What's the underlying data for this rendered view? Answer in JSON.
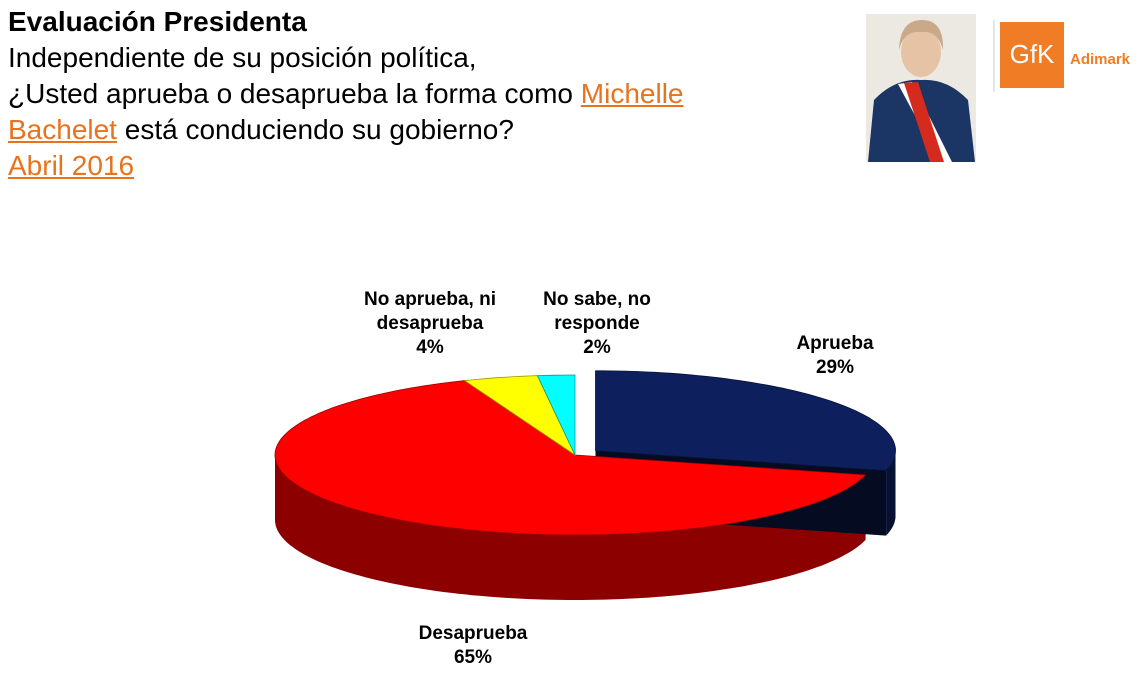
{
  "chart_data": {
    "type": "pie",
    "title": "Evaluación Presidenta",
    "subtitle": "Independiente de su posición política,",
    "question_start": "¿Usted aprueba o desaprueba la forma como",
    "name_first": "Michelle",
    "name_last": "Bachelet",
    "question_end": "está conduciendo su gobierno?",
    "date": "Abril 2016",
    "categories": [
      "Aprueba",
      "Desaprueba",
      "No aprueba, ni desaprueba",
      "No sabe, no responde"
    ],
    "values": [
      29,
      65,
      4,
      2
    ],
    "value_labels": [
      "29%",
      "65%",
      "4%",
      "2%"
    ],
    "colors": [
      "#0d1f5c",
      "#ff0000",
      "#ffff00",
      "#00ffff"
    ]
  },
  "logo": {
    "brand": "GfK",
    "name": "Adimark"
  }
}
